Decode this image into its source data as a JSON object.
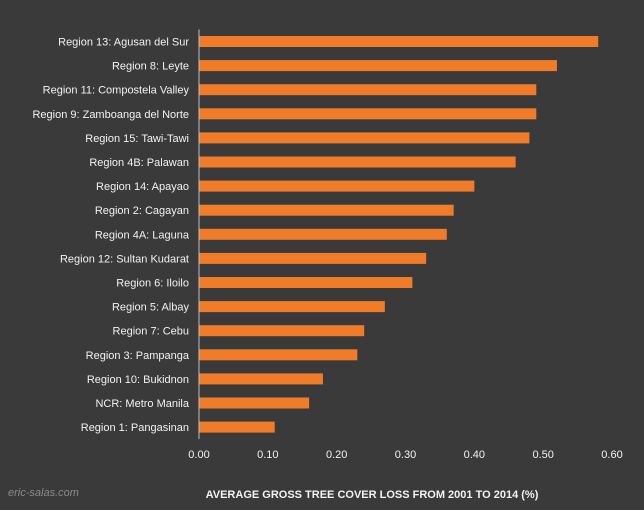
{
  "chart_data": {
    "type": "bar",
    "orientation": "horizontal",
    "categories": [
      "Region 13: Agusan del Sur",
      "Region 8: Leyte",
      "Region 11: Compostela Valley",
      "Region 9: Zamboanga del Norte",
      "Region 15: Tawi-Tawi",
      "Region 4B: Palawan",
      "Region 14: Apayao",
      "Region 2: Cagayan",
      "Region 4A: Laguna",
      "Region 12: Sultan Kudarat",
      "Region 6: Iloilo",
      "Region 5: Albay",
      "Region 7: Cebu",
      "Region 3: Pampanga",
      "Region 10: Bukidnon",
      "NCR: Metro Manila",
      "Region 1: Pangasinan"
    ],
    "values": [
      0.58,
      0.52,
      0.49,
      0.49,
      0.48,
      0.46,
      0.4,
      0.37,
      0.36,
      0.33,
      0.31,
      0.27,
      0.24,
      0.23,
      0.18,
      0.16,
      0.11
    ],
    "xlabel": "AVERAGE GROSS TREE COVER LOSS FROM 2001 TO 2014 (%)",
    "ylabel": "",
    "title": "",
    "xlim": [
      0,
      0.6
    ],
    "xticks": [
      "0.00",
      "0.10",
      "0.20",
      "0.30",
      "0.40",
      "0.50",
      "0.60"
    ],
    "grid": false,
    "bar_color": "#f07c2a",
    "background_color": "#3a3a3a",
    "text_color": "#f2f2f2",
    "watermark": "eric-salas.com"
  }
}
